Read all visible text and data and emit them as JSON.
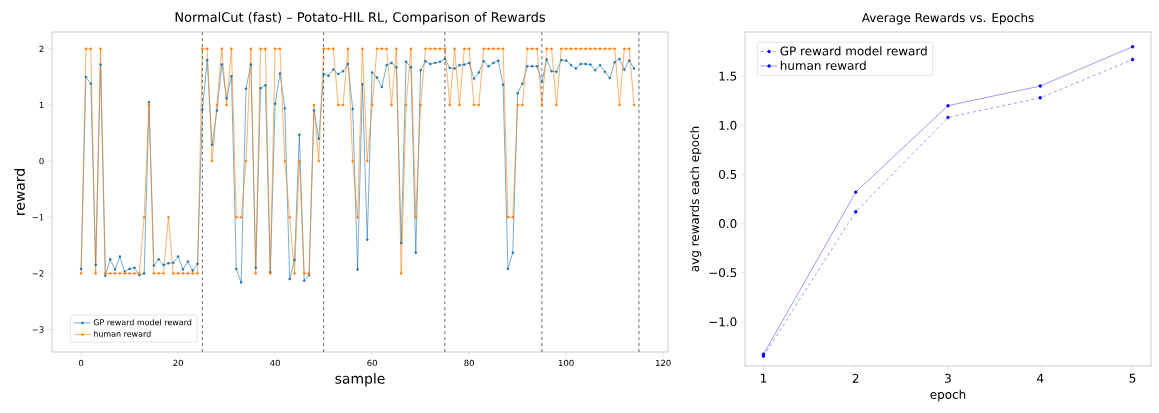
{
  "chart_data": [
    {
      "type": "line",
      "title": "NormalCut (fast) – Potato-HIL RL, Comparison of Rewards",
      "xlabel": "sample",
      "ylabel": "reward",
      "marker": "circle",
      "legend": "bottom left",
      "xlim": [
        -6,
        121
      ],
      "ylim": [
        -3.4,
        2.3
      ],
      "xticks": [
        0,
        20,
        40,
        60,
        80,
        100,
        120
      ],
      "yticks": [
        {
          "value": -3,
          "label": "−3"
        },
        {
          "value": -2,
          "label": "−2"
        },
        {
          "value": -1,
          "label": "−1"
        },
        0,
        1,
        2
      ],
      "x": [
        0,
        1,
        2,
        3,
        4,
        5,
        6,
        7,
        8,
        9,
        10,
        11,
        12,
        13,
        14,
        15,
        16,
        17,
        18,
        19,
        20,
        21,
        22,
        23,
        24,
        25,
        26,
        27,
        28,
        29,
        30,
        31,
        32,
        33,
        34,
        35,
        36,
        37,
        38,
        39,
        40,
        41,
        42,
        43,
        44,
        45,
        46,
        47,
        48,
        49,
        50,
        51,
        52,
        53,
        54,
        55,
        56,
        57,
        58,
        59,
        60,
        61,
        62,
        63,
        64,
        65,
        66,
        67,
        68,
        69,
        70,
        71,
        72,
        73,
        74,
        75,
        76,
        77,
        78,
        79,
        80,
        81,
        82,
        83,
        84,
        85,
        86,
        87,
        88,
        89,
        90,
        91,
        92,
        93,
        94,
        95,
        96,
        97,
        98,
        99,
        100,
        101,
        102,
        103,
        104,
        105,
        106,
        107,
        108,
        109,
        110,
        111,
        112,
        113,
        114
      ],
      "series": [
        {
          "name": "GP reward model reward",
          "color": "#1f77b4",
          "values": [
            -1.92,
            1.5,
            1.38,
            -1.85,
            1.72,
            -2.04,
            -1.75,
            -1.93,
            -1.7,
            -1.97,
            -1.92,
            -1.9,
            -2.03,
            -2.0,
            1.05,
            -1.86,
            -1.75,
            -1.85,
            -1.82,
            -1.81,
            -1.7,
            -1.93,
            -1.79,
            -1.95,
            -1.83,
            0.92,
            1.8,
            0.29,
            0.9,
            1.72,
            1.12,
            1.51,
            -1.92,
            -2.16,
            1.29,
            1.72,
            -1.9,
            1.3,
            1.35,
            -1.98,
            1.02,
            1.56,
            0.94,
            -2.1,
            -1.76,
            0.47,
            -2.13,
            -2.03,
            0.9,
            0.4,
            1.55,
            1.52,
            1.63,
            1.55,
            1.6,
            1.73,
            0.93,
            -1.93,
            1.37,
            -1.4,
            1.58,
            1.49,
            1.32,
            1.71,
            1.75,
            1.67,
            -1.46,
            1.77,
            1.67,
            -1.63,
            1.62,
            1.78,
            1.73,
            1.75,
            1.77,
            1.82,
            1.66,
            1.65,
            1.71,
            1.72,
            1.75,
            1.47,
            1.58,
            1.78,
            1.69,
            1.75,
            1.79,
            1.36,
            -1.92,
            -1.63,
            1.21,
            1.38,
            1.69,
            1.69,
            1.69,
            1.41,
            1.81,
            1.6,
            1.59,
            1.8,
            1.79,
            1.71,
            1.65,
            1.73,
            1.73,
            1.72,
            1.62,
            1.71,
            1.59,
            1.48,
            1.76,
            1.82,
            1.63,
            1.79,
            1.65
          ]
        },
        {
          "name": "human reward",
          "color": "#ff7f0e",
          "values": [
            -2,
            2,
            2,
            -2,
            2,
            -2,
            -2,
            -2,
            -2,
            -2,
            -2,
            -2,
            -2,
            -1,
            1,
            -2,
            -2,
            -2,
            -1,
            -2,
            -2,
            -2,
            -2,
            -2,
            -2,
            2,
            2,
            0,
            1,
            2,
            1,
            2,
            -1,
            -1,
            0,
            2,
            -2,
            2,
            2,
            -2,
            2,
            2,
            0,
            -1,
            -2,
            0,
            -2,
            -2,
            1,
            0,
            2,
            2,
            2,
            1,
            1,
            2,
            0,
            -1,
            2,
            0,
            1,
            2,
            2,
            2,
            1,
            2,
            -2,
            1,
            2,
            -1,
            1,
            2,
            2,
            2,
            2,
            2,
            1,
            2,
            1,
            2,
            2,
            1,
            1,
            2,
            2,
            2,
            2,
            2,
            -1,
            -1,
            1,
            1,
            2,
            2,
            2,
            1,
            2,
            2,
            1,
            2,
            2,
            2,
            2,
            2,
            2,
            2,
            2,
            2,
            2,
            2,
            2,
            1,
            2,
            2,
            1
          ]
        }
      ],
      "ref_lines": [
        {
          "axis": "x",
          "value": 25,
          "color": "#404040",
          "line_style": "dashed"
        },
        {
          "axis": "x",
          "value": 50,
          "color": "#404040",
          "line_style": "dashed"
        },
        {
          "axis": "x",
          "value": 75,
          "color": "#404040",
          "line_style": "dashed"
        },
        {
          "axis": "x",
          "value": 95,
          "color": "#404040",
          "line_style": "dashed"
        },
        {
          "axis": "x",
          "value": 115,
          "color": "#404040",
          "line_style": "dashed"
        }
      ]
    },
    {
      "type": "line",
      "title": "Average Rewards vs. Epochs",
      "xlabel": "epoch",
      "ylabel": "avg rewards each epoch",
      "marker": "circle",
      "legend": "top left",
      "xlim": [
        0.8,
        5.2
      ],
      "ylim": [
        -1.45,
        1.95
      ],
      "xticks": [
        1,
        2,
        3,
        4,
        5
      ],
      "yticks": [
        {
          "value": -1,
          "label": "−1.0"
        },
        {
          "value": -0.5,
          "label": "−0.5"
        },
        {
          "value": 0,
          "label": "0.0"
        },
        0.5,
        {
          "value": 1,
          "label": "1.0"
        },
        1.5
      ],
      "x": [
        1,
        2,
        3,
        4,
        5
      ],
      "series": [
        {
          "name": "GP reward model reward",
          "color": "#0000ff",
          "line_style": "dashed",
          "values": [
            -1.35,
            0.12,
            1.08,
            1.28,
            1.67
          ]
        },
        {
          "name": "human reward",
          "color": "#0000ff",
          "line_style": "solid",
          "values": [
            -1.33,
            0.32,
            1.2,
            1.4,
            1.8
          ]
        }
      ]
    }
  ]
}
